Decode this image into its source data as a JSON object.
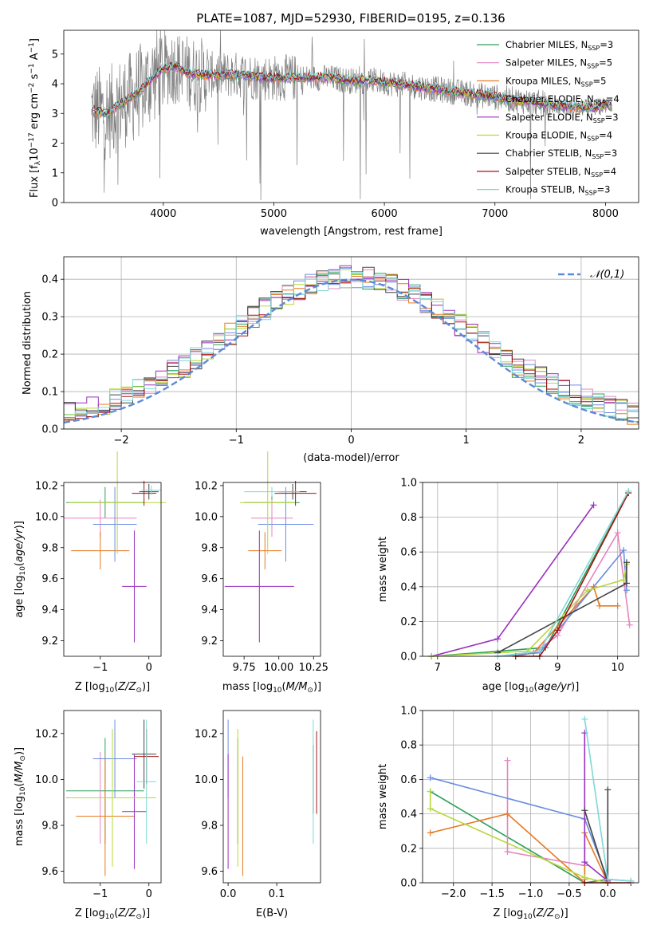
{
  "figure_title": "PLATE=1087, MJD=52930, FIBERID=0195, z=0.136",
  "colors": {
    "chabrier_miles": "#2ca05a",
    "salpeter_miles": "#e584c0",
    "kroupa_miles": "#e57a22",
    "chabrier_elodie": "#6a8de0",
    "salpeter_elodie": "#9a2fbf",
    "kroupa_elodie": "#b7d83a",
    "chabrier_stelib": "#444444",
    "salpeter_stelib": "#a51212",
    "kroupa_stelib": "#7fd8d8",
    "data_spectrum": "#808080",
    "normal_curve": "#5b8ad8",
    "grid": "#b0b0b0"
  },
  "chart_data": [
    {
      "id": "spectrum",
      "type": "line",
      "title": "PLATE=1087, MJD=52930, FIBERID=0195, z=0.136",
      "xlabel": "wavelength [Angstrom, rest frame]",
      "ylabel": "Flux [f_λ 10^-17 erg cm^-2 s^-1 A^-1]",
      "xlim": [
        3100,
        8300
      ],
      "ylim": [
        0,
        5.8
      ],
      "xticks": [
        4000,
        5000,
        6000,
        7000,
        8000
      ],
      "yticks": [
        0,
        1,
        2,
        3,
        4,
        5
      ],
      "grid": false,
      "legend_position": "top-right",
      "legend": [
        {
          "label": "Chabrier MILES, N",
          "sub": "SSP",
          "suffix": "=3",
          "color": "#2ca05a"
        },
        {
          "label": "Salpeter MILES, N",
          "sub": "SSP",
          "suffix": "=5",
          "color": "#e584c0"
        },
        {
          "label": "Kroupa MILES, N",
          "sub": "SSP",
          "suffix": "=5",
          "color": "#e57a22"
        },
        {
          "label": "Chabrier ELODIE, N",
          "sub": "SSP",
          "suffix": "=4",
          "color": "#6a8de0"
        },
        {
          "label": "Salpeter ELODIE, N",
          "sub": "SSP",
          "suffix": "=3",
          "color": "#9a2fbf"
        },
        {
          "label": "Kroupa ELODIE, N",
          "sub": "SSP",
          "suffix": "=4",
          "color": "#b7d83a"
        },
        {
          "label": "Chabrier STELIB, N",
          "sub": "SSP",
          "suffix": "=3",
          "color": "#444444"
        },
        {
          "label": "Salpeter STELIB, N",
          "sub": "SSP",
          "suffix": "=4",
          "color": "#a51212"
        },
        {
          "label": "Kroupa STELIB, N",
          "sub": "SSP",
          "suffix": "=3",
          "color": "#7fd8d8"
        }
      ],
      "data_envelope": {
        "x": [
          3350,
          3500,
          3600,
          3700,
          3800,
          3900,
          4000,
          4100,
          4200,
          4300,
          4500,
          4700,
          4900,
          5100,
          5300,
          5500,
          5700,
          5900,
          6100,
          6300,
          6500,
          6700,
          6900,
          7100,
          7300,
          7500,
          7700,
          7900,
          8050
        ],
        "y": [
          3.1,
          3.0,
          3.3,
          3.5,
          3.8,
          4.2,
          4.5,
          4.6,
          4.4,
          4.3,
          4.3,
          4.3,
          4.2,
          4.2,
          4.2,
          4.2,
          4.1,
          4.1,
          4.0,
          3.9,
          3.8,
          3.7,
          3.6,
          3.5,
          3.4,
          3.3,
          3.2,
          3.2,
          3.3
        ]
      }
    },
    {
      "id": "residuals",
      "type": "histogram",
      "xlabel": "(data-model)/error",
      "ylabel": "Normed distribution",
      "xlim": [
        -2.5,
        2.5
      ],
      "ylim": [
        0,
        0.46
      ],
      "xticks": [
        -2,
        -1,
        0,
        1,
        2
      ],
      "yticks": [
        0.0,
        0.1,
        0.2,
        0.3,
        0.4
      ],
      "grid": true,
      "legend_position": "top-right",
      "reference_curve": {
        "label": "𝒩(0,1)",
        "mean": 0,
        "sigma": 1
      },
      "bin_edges_start": -2.5,
      "bin_width": 0.1,
      "n_bins": 50
    },
    {
      "id": "age_vs_Z",
      "type": "errorbar",
      "xlabel": "Z [log10(Z/Z⊙)]",
      "ylabel": "age [log10(age/yr)]",
      "xlim": [
        -1.75,
        0.25
      ],
      "ylim": [
        9.1,
        10.22
      ],
      "xticks": [
        -1,
        0
      ],
      "yticks": [
        9.2,
        9.4,
        9.6,
        9.8,
        10.0,
        10.2
      ],
      "points": [
        {
          "model": "Chabrier MILES",
          "x": -0.9,
          "xerr": 0.8,
          "y": 10.09,
          "yerr": 0.1,
          "color": "#2ca05a"
        },
        {
          "model": "Salpeter MILES",
          "x": -1.0,
          "xerr": 0.75,
          "y": 9.99,
          "yerr": 0.12,
          "color": "#e584c0"
        },
        {
          "model": "Kroupa MILES",
          "x": -1.0,
          "xerr": 0.6,
          "y": 9.78,
          "yerr": 0.12,
          "color": "#e57a22"
        },
        {
          "model": "Chabrier ELODIE",
          "x": -0.7,
          "xerr": 0.45,
          "y": 9.95,
          "yerr": 0.24,
          "color": "#6a8de0"
        },
        {
          "model": "Salpeter ELODIE",
          "x": -0.3,
          "xerr": 0.25,
          "y": 9.55,
          "yerr": 0.36,
          "color": "#9a2fbf"
        },
        {
          "model": "Kroupa ELODIE",
          "x": -0.65,
          "xerr": 1.0,
          "y": 10.09,
          "yerr": 0.33,
          "color": "#b7d83a"
        },
        {
          "model": "Chabrier STELIB",
          "x": -0.0,
          "xerr": 0.2,
          "y": 10.16,
          "yerr": 0.05,
          "color": "#444444"
        },
        {
          "model": "Salpeter STELIB",
          "x": -0.1,
          "xerr": 0.25,
          "y": 10.15,
          "yerr": 0.08,
          "color": "#a51212"
        },
        {
          "model": "Kroupa STELIB",
          "x": 0.05,
          "xerr": 0.2,
          "y": 10.17,
          "yerr": 0.03,
          "color": "#7fd8d8"
        }
      ]
    },
    {
      "id": "age_vs_mass",
      "type": "errorbar",
      "xlabel": "mass [log10(M/M⊙)]",
      "ylabel": "",
      "xlim": [
        9.6,
        10.3
      ],
      "ylim": [
        9.1,
        10.22
      ],
      "xticks": [
        9.75,
        10.0,
        10.25
      ],
      "xticklabels": [
        "9.75",
        "10.00",
        "10.25"
      ],
      "yticks": [
        9.2,
        9.4,
        9.6,
        9.8,
        10.0,
        10.2
      ],
      "points": [
        {
          "model": "Chabrier MILES",
          "x": 9.95,
          "xerr": 0.2,
          "y": 10.09,
          "yerr": 0.1,
          "color": "#2ca05a"
        },
        {
          "model": "Salpeter MILES",
          "x": 9.95,
          "xerr": 0.15,
          "y": 9.99,
          "yerr": 0.12,
          "color": "#e584c0"
        },
        {
          "model": "Kroupa MILES",
          "x": 9.9,
          "xerr": 0.12,
          "y": 9.78,
          "yerr": 0.12,
          "color": "#e57a22"
        },
        {
          "model": "Chabrier ELODIE",
          "x": 10.05,
          "xerr": 0.2,
          "y": 9.95,
          "yerr": 0.24,
          "color": "#6a8de0"
        },
        {
          "model": "Salpeter ELODIE",
          "x": 9.86,
          "xerr": 0.25,
          "y": 9.55,
          "yerr": 0.36,
          "color": "#9a2fbf"
        },
        {
          "model": "Kroupa ELODIE",
          "x": 9.92,
          "xerr": 0.2,
          "y": 10.09,
          "yerr": 0.33,
          "color": "#b7d83a"
        },
        {
          "model": "Chabrier STELIB",
          "x": 10.1,
          "xerr": 0.1,
          "y": 10.16,
          "yerr": 0.05,
          "color": "#444444"
        },
        {
          "model": "Salpeter STELIB",
          "x": 10.12,
          "xerr": 0.15,
          "y": 10.15,
          "yerr": 0.08,
          "color": "#a51212"
        },
        {
          "model": "Kroupa STELIB",
          "x": 9.95,
          "xerr": 0.2,
          "y": 10.16,
          "yerr": 0.03,
          "color": "#7fd8d8"
        }
      ]
    },
    {
      "id": "weight_vs_age",
      "type": "line",
      "xlabel": "age  [log10(age/yr)]",
      "ylabel": "mass weight",
      "xlim": [
        6.75,
        10.35
      ],
      "ylim": [
        0,
        1.0
      ],
      "xticks": [
        7,
        8,
        9,
        10
      ],
      "yticks": [
        0.0,
        0.2,
        0.4,
        0.6,
        0.8,
        1.0
      ],
      "grid": true,
      "series": [
        {
          "model": "Chabrier MILES",
          "color": "#2ca05a",
          "x": [
            6.9,
            8.8,
            10.18
          ],
          "y": [
            0.0,
            0.05,
            0.94
          ]
        },
        {
          "model": "Salpeter MILES",
          "color": "#e584c0",
          "x": [
            8.3,
            8.6,
            9.0,
            10.0,
            10.2
          ],
          "y": [
            0.0,
            0.02,
            0.12,
            0.71,
            0.18
          ]
        },
        {
          "model": "Kroupa MILES",
          "color": "#e57a22",
          "x": [
            8.3,
            8.6,
            9.6,
            9.7,
            10.0
          ],
          "y": [
            0.0,
            0.02,
            0.4,
            0.29,
            0.29
          ]
        },
        {
          "model": "Chabrier ELODIE",
          "color": "#6a8de0",
          "x": [
            8.0,
            8.7,
            10.1,
            10.15
          ],
          "y": [
            0.0,
            0.02,
            0.61,
            0.38
          ]
        },
        {
          "model": "Salpeter ELODIE",
          "color": "#9a2fbf",
          "x": [
            6.9,
            8.0,
            9.6
          ],
          "y": [
            0.0,
            0.1,
            0.87
          ]
        },
        {
          "model": "Kroupa ELODIE",
          "color": "#b7d83a",
          "x": [
            6.9,
            8.5,
            9.5,
            10.1,
            10.15
          ],
          "y": [
            0.0,
            0.03,
            0.38,
            0.44,
            0.53
          ]
        },
        {
          "model": "Chabrier STELIB",
          "color": "#444444",
          "x": [
            8.0,
            10.15,
            10.15
          ],
          "y": [
            0.02,
            0.42,
            0.54
          ]
        },
        {
          "model": "Salpeter STELIB",
          "color": "#a51212",
          "x": [
            8.3,
            8.7,
            9.0,
            10.18
          ],
          "y": [
            0.0,
            0.0,
            0.15,
            0.94
          ]
        },
        {
          "model": "Kroupa STELIB",
          "color": "#7fd8d8",
          "x": [
            8.0,
            8.7,
            10.18
          ],
          "y": [
            0.0,
            0.03,
            0.95
          ]
        }
      ]
    },
    {
      "id": "mass_vs_Z",
      "type": "errorbar",
      "xlabel": "Z [log10(Z/Z⊙)]",
      "ylabel": "mass [log10(M/M⊙)]",
      "xlim": [
        -1.75,
        0.25
      ],
      "ylim": [
        9.55,
        10.3
      ],
      "xticks": [
        -1,
        0
      ],
      "yticks": [
        9.6,
        9.8,
        10.0,
        10.2
      ],
      "points": [
        {
          "model": "Chabrier MILES",
          "x": -0.9,
          "xerr": 0.8,
          "y": 9.95,
          "yerr": 0.23,
          "color": "#2ca05a"
        },
        {
          "model": "Salpeter MILES",
          "x": -1.0,
          "xerr": 0.7,
          "y": 9.92,
          "yerr": 0.2,
          "color": "#e584c0"
        },
        {
          "model": "Kroupa MILES",
          "x": -0.9,
          "xerr": 0.6,
          "y": 9.84,
          "yerr": 0.26,
          "color": "#e57a22"
        },
        {
          "model": "Chabrier ELODIE",
          "x": -0.7,
          "xerr": 0.45,
          "y": 10.09,
          "yerr": 0.17,
          "color": "#6a8de0"
        },
        {
          "model": "Salpeter ELODIE",
          "x": -0.3,
          "xerr": 0.25,
          "y": 9.86,
          "yerr": 0.25,
          "color": "#9a2fbf"
        },
        {
          "model": "Kroupa ELODIE",
          "x": -0.75,
          "xerr": 0.9,
          "y": 9.92,
          "yerr": 0.3,
          "color": "#b7d83a"
        },
        {
          "model": "Chabrier STELIB",
          "x": -0.1,
          "xerr": 0.25,
          "y": 10.11,
          "yerr": 0.15,
          "color": "#444444"
        },
        {
          "model": "Salpeter STELIB",
          "x": -0.05,
          "xerr": 0.25,
          "y": 10.1,
          "yerr": 0.12,
          "color": "#a51212"
        },
        {
          "model": "Kroupa STELIB",
          "x": -0.05,
          "xerr": 0.2,
          "y": 9.99,
          "yerr": 0.27,
          "color": "#7fd8d8"
        }
      ]
    },
    {
      "id": "mass_vs_ebv",
      "type": "errorbar",
      "xlabel": "E(B-V)",
      "ylabel": "",
      "xlim": [
        -0.01,
        0.19
      ],
      "ylim": [
        9.55,
        10.3
      ],
      "xticks": [
        0.0,
        0.1
      ],
      "xticklabels": [
        "0.0",
        "0.1"
      ],
      "yticks": [
        9.6,
        9.8,
        10.0,
        10.2
      ],
      "points": [
        {
          "model": "Chabrier MILES",
          "x": 0.02,
          "xerr": 0.0,
          "y": 9.95,
          "yerr": 0.23,
          "color": "#2ca05a"
        },
        {
          "model": "Salpeter MILES",
          "x": 0.02,
          "xerr": 0.0,
          "y": 9.92,
          "yerr": 0.2,
          "color": "#e584c0"
        },
        {
          "model": "Kroupa MILES",
          "x": 0.03,
          "xerr": 0.0,
          "y": 9.84,
          "yerr": 0.26,
          "color": "#e57a22"
        },
        {
          "model": "Chabrier ELODIE",
          "x": 0.0,
          "xerr": 0.0,
          "y": 10.09,
          "yerr": 0.17,
          "color": "#6a8de0"
        },
        {
          "model": "Salpeter ELODIE",
          "x": 0.0,
          "xerr": 0.0,
          "y": 9.86,
          "yerr": 0.25,
          "color": "#9a2fbf"
        },
        {
          "model": "Kroupa ELODIE",
          "x": 0.02,
          "xerr": 0.0,
          "y": 9.92,
          "yerr": 0.3,
          "color": "#b7d83a"
        },
        {
          "model": "Chabrier STELIB",
          "x": 0.175,
          "xerr": 0.0,
          "y": 10.0,
          "yerr": 0.15,
          "color": "#444444"
        },
        {
          "model": "Salpeter STELIB",
          "x": 0.182,
          "xerr": 0.0,
          "y": 10.03,
          "yerr": 0.18,
          "color": "#a51212"
        },
        {
          "model": "Kroupa STELIB",
          "x": 0.175,
          "xerr": 0.0,
          "y": 9.99,
          "yerr": 0.27,
          "color": "#7fd8d8"
        }
      ]
    },
    {
      "id": "weight_vs_Z",
      "type": "line",
      "xlabel": "Z [log10(Z/Z⊙)]",
      "ylabel": "mass weight",
      "xlim": [
        -2.4,
        0.4
      ],
      "ylim": [
        0,
        1.0
      ],
      "xticks": [
        -2.0,
        -1.5,
        -1.0,
        -0.5,
        0.0
      ],
      "xticklabels": [
        "−2.0",
        "−1.5",
        "−1.0",
        "−0.5",
        "0.0"
      ],
      "yticks": [
        0.0,
        0.2,
        0.4,
        0.6,
        0.8,
        1.0
      ],
      "grid": true,
      "series": [
        {
          "model": "Chabrier MILES",
          "color": "#2ca05a",
          "x": [
            -2.3,
            -0.3,
            0.0
          ],
          "y": [
            0.53,
            0.0,
            0.02
          ]
        },
        {
          "model": "Salpeter MILES",
          "color": "#e584c0",
          "x": [
            -1.3,
            -1.3,
            -0.3,
            -0.3
          ],
          "y": [
            0.71,
            0.18,
            0.1,
            0.02
          ]
        },
        {
          "model": "Kroupa MILES",
          "color": "#e57a22",
          "x": [
            -2.3,
            -1.3,
            -0.3,
            -0.3,
            0.0
          ],
          "y": [
            0.29,
            0.4,
            0.0,
            0.29,
            0.0
          ]
        },
        {
          "model": "Chabrier ELODIE",
          "color": "#6a8de0",
          "x": [
            -2.3,
            -0.3,
            0.0,
            0.3
          ],
          "y": [
            0.61,
            0.37,
            0.02,
            0.01
          ]
        },
        {
          "model": "Salpeter ELODIE",
          "color": "#9a2fbf",
          "x": [
            -0.3,
            -0.3,
            0.0
          ],
          "y": [
            0.87,
            0.12,
            0.01
          ]
        },
        {
          "model": "Kroupa ELODIE",
          "color": "#b7d83a",
          "x": [
            -2.3,
            -2.3,
            -0.3,
            0.0
          ],
          "y": [
            0.53,
            0.43,
            0.03,
            0.0
          ]
        },
        {
          "model": "Chabrier STELIB",
          "color": "#444444",
          "x": [
            -0.3,
            0.0,
            0.0
          ],
          "y": [
            0.42,
            0.0,
            0.54
          ]
        },
        {
          "model": "Salpeter STELIB",
          "color": "#a51212",
          "x": [
            -0.3,
            0.0,
            0.3
          ],
          "y": [
            0.0,
            0.0,
            0.0
          ]
        },
        {
          "model": "Kroupa STELIB",
          "color": "#7fd8d8",
          "x": [
            -0.3,
            0.0,
            0.3
          ],
          "y": [
            0.95,
            0.02,
            0.01
          ]
        }
      ]
    }
  ]
}
